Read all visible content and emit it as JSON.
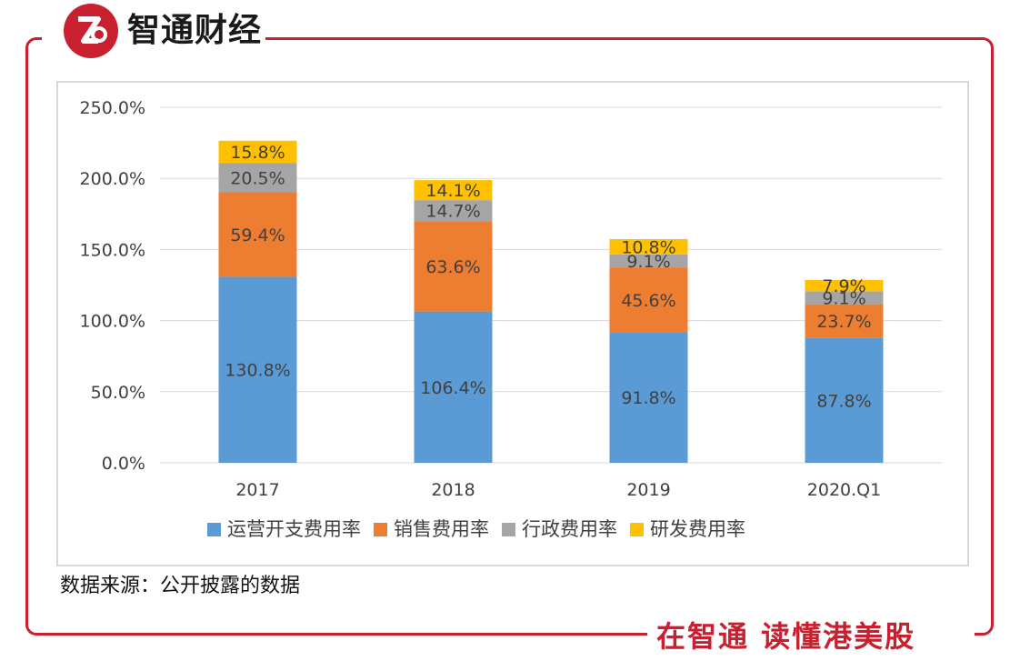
{
  "brand": {
    "name": "智通财经",
    "slogan": "在智通 读懂港美股",
    "accent_color": "#c8202f",
    "logo_icon": "zhitong-logo-icon"
  },
  "source_note": "数据来源：公开披露的数据",
  "chart_data": {
    "type": "bar",
    "stacked": true,
    "categories": [
      "2017",
      "2018",
      "2019",
      "2020.Q1"
    ],
    "series": [
      {
        "name": "运营开支费用率",
        "color": "#5b9bd5",
        "values": [
          130.8,
          106.4,
          91.8,
          87.8
        ],
        "labels": [
          "130.8%",
          "106.4%",
          "91.8%",
          "87.8%"
        ]
      },
      {
        "name": "销售费用率",
        "color": "#ed7d31",
        "values": [
          59.4,
          63.6,
          45.6,
          23.7
        ],
        "labels": [
          "59.4%",
          "63.6%",
          "45.6%",
          "23.7%"
        ]
      },
      {
        "name": "行政费用率",
        "color": "#a5a5a5",
        "values": [
          20.5,
          14.7,
          9.1,
          9.1
        ],
        "labels": [
          "20.5%",
          "14.7%",
          "9.1%",
          "9.1%"
        ]
      },
      {
        "name": "研发费用率",
        "color": "#ffc000",
        "values": [
          15.8,
          14.1,
          10.8,
          7.9
        ],
        "labels": [
          "15.8%",
          "14.1%",
          "10.8%",
          "7.9%"
        ]
      }
    ],
    "ylim": [
      0,
      250
    ],
    "yticks": [
      0,
      50,
      100,
      150,
      200,
      250
    ],
    "ytick_labels": [
      "0.0%",
      "50.0%",
      "100.0%",
      "150.0%",
      "200.0%",
      "250.0%"
    ],
    "grid": true,
    "legend_position": "bottom",
    "title": "",
    "xlabel": "",
    "ylabel": ""
  }
}
